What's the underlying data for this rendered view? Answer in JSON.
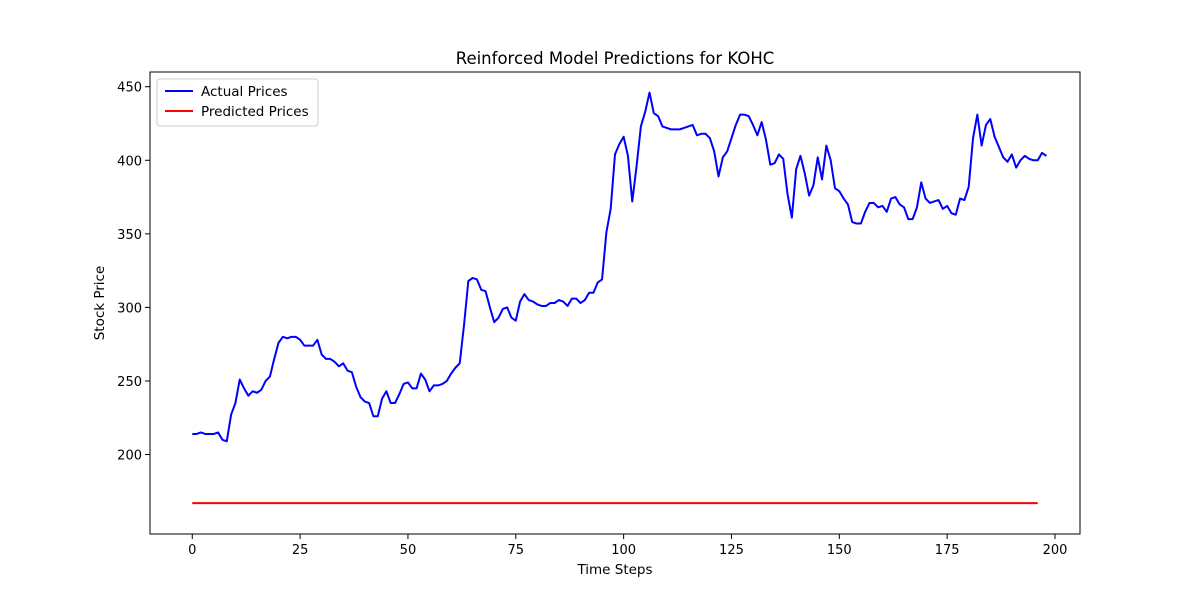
{
  "chart_data": {
    "type": "line",
    "title": "Reinforced Model Predictions for KOHC",
    "xlabel": "Time Steps",
    "ylabel": "Stock Price",
    "xlim": [
      -9.8,
      205.8
    ],
    "ylim": [
      146,
      460
    ],
    "xticks": [
      0,
      25,
      50,
      75,
      100,
      125,
      150,
      175,
      200
    ],
    "yticks": [
      200,
      250,
      300,
      350,
      400,
      450
    ],
    "grid": false,
    "legend": "upper-left",
    "series": [
      {
        "name": "Actual Prices",
        "color": "#0000ff",
        "values": [
          214,
          214,
          215,
          214,
          214,
          214,
          215,
          210,
          209,
          227,
          235,
          251,
          245,
          240,
          243,
          242,
          244,
          250,
          253,
          265,
          276,
          280,
          279,
          280,
          280,
          278,
          274,
          274,
          274,
          278,
          268,
          265,
          265,
          263,
          260,
          262,
          257,
          256,
          246,
          239,
          236,
          235,
          226,
          226,
          238,
          243,
          235,
          235,
          241,
          248,
          249,
          245,
          245,
          255,
          251,
          243,
          247,
          247,
          248,
          250,
          255,
          259,
          262,
          288,
          318,
          320,
          319,
          312,
          311,
          300,
          290,
          293,
          299,
          300,
          293,
          291,
          304,
          309,
          305,
          304,
          302,
          301,
          301,
          303,
          303,
          305,
          304,
          301,
          306,
          306,
          303,
          305,
          310,
          310,
          317,
          319,
          351,
          367,
          404,
          411,
          416,
          403,
          372,
          396,
          423,
          433,
          446,
          432,
          430,
          423,
          422,
          421,
          421,
          421,
          422,
          423,
          424,
          417,
          418,
          418,
          415,
          406,
          389,
          402,
          406,
          415,
          424,
          431,
          431,
          430,
          424,
          417,
          426,
          414,
          397,
          398,
          404,
          401,
          377,
          361,
          394,
          403,
          391,
          376,
          383,
          402,
          387,
          410,
          400,
          381,
          379,
          374,
          370,
          358,
          357,
          357,
          365,
          371,
          371,
          368,
          369,
          365,
          374,
          375,
          370,
          368,
          360,
          360,
          368,
          385,
          374,
          371,
          372,
          373,
          367,
          369,
          364,
          363,
          374,
          373,
          382,
          415,
          431,
          410,
          424,
          428,
          416,
          409,
          402,
          399,
          404,
          395,
          400,
          403,
          401,
          400,
          400,
          405,
          403
        ]
      },
      {
        "name": "Predicted Prices",
        "color": "#ff0000",
        "values": [
          167,
          167
        ]
      }
    ],
    "predicted_x": [
      0,
      196
    ]
  }
}
